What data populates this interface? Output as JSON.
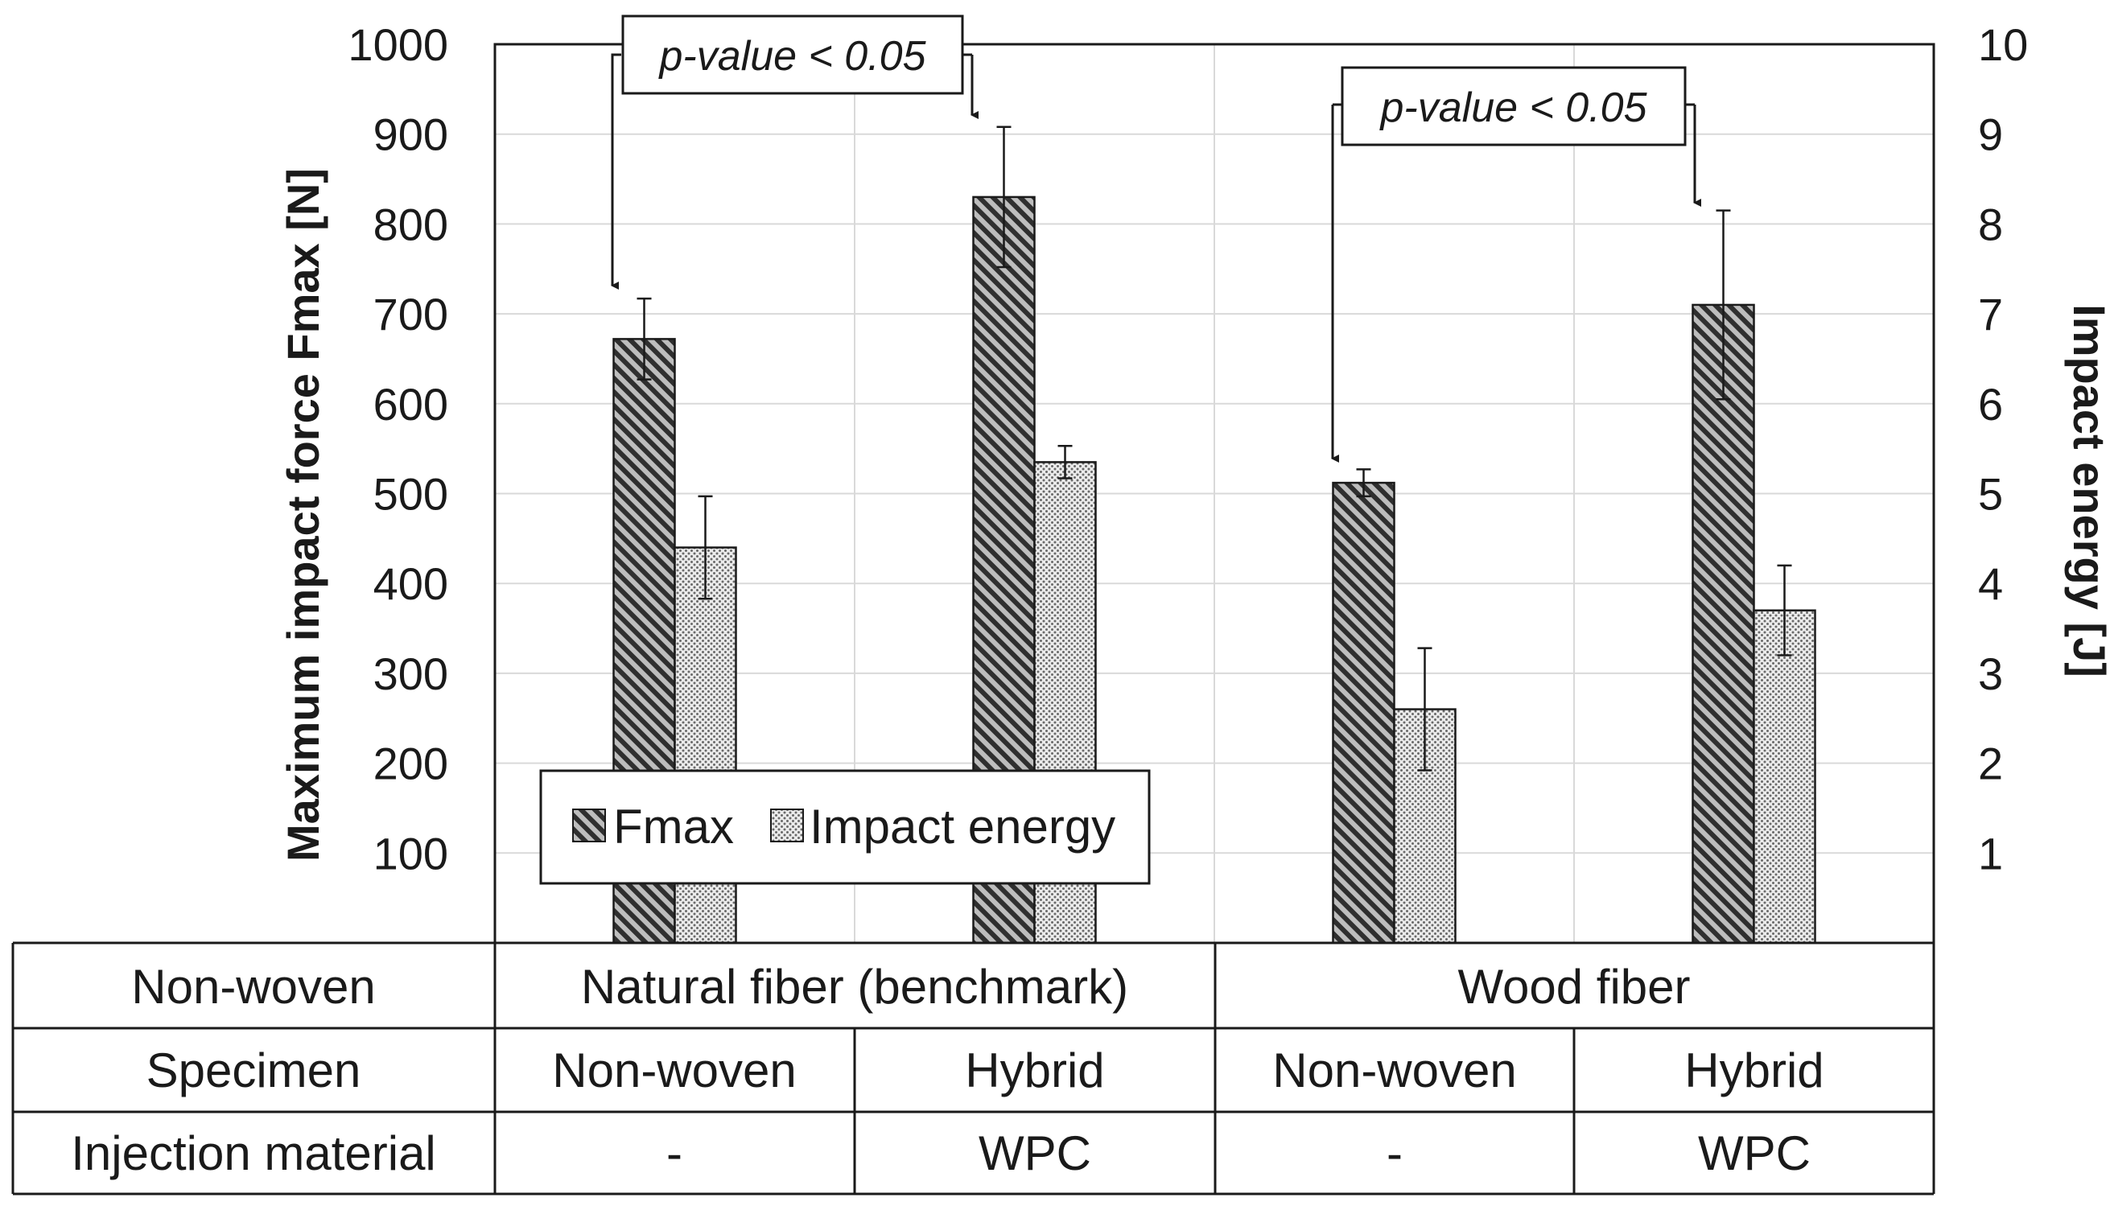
{
  "chart_data": {
    "type": "bar",
    "title": "",
    "ylabel": "Maximum impact force Fmax  [N]",
    "y2label": "Impact energy [J]",
    "ylim": [
      0,
      1000
    ],
    "y2lim": [
      0,
      10
    ],
    "yticks": [
      "100",
      "200",
      "300",
      "400",
      "500",
      "600",
      "700",
      "800",
      "900",
      "1000"
    ],
    "y2ticks": [
      "1",
      "2",
      "3",
      "4",
      "5",
      "6",
      "7",
      "8",
      "9",
      "10"
    ],
    "grid": true,
    "legend_position": "bottom-left",
    "categories": [
      "Natural fiber Non-woven",
      "Natural fiber Hybrid",
      "Wood fiber Non-woven",
      "Wood fiber Hybrid"
    ],
    "series": [
      {
        "name": "Fmax",
        "axis": "left",
        "pattern": "hatch",
        "values": [
          672,
          830,
          512,
          710
        ],
        "errors": [
          45,
          78,
          15,
          105
        ]
      },
      {
        "name": "Impact energy",
        "axis": "right",
        "pattern": "dots",
        "values": [
          4.4,
          5.35,
          2.6,
          3.7
        ],
        "errors": [
          0.57,
          0.18,
          0.68,
          0.5
        ]
      }
    ],
    "annotations": [
      {
        "text": "p-value < 0.05",
        "from": 0,
        "to": 1
      },
      {
        "text": "p-value < 0.05",
        "from": 2,
        "to": 3
      }
    ],
    "table": {
      "rows": [
        {
          "header": "Non-woven",
          "cells": [
            "Natural fiber (benchmark)",
            "Wood fiber"
          ]
        },
        {
          "header": "Specimen",
          "cells": [
            "Non-woven",
            "Hybrid",
            "Non-woven",
            "Hybrid"
          ]
        },
        {
          "header": "Injection material",
          "cells": [
            "-",
            "WPC",
            "-",
            "WPC"
          ]
        }
      ]
    }
  }
}
